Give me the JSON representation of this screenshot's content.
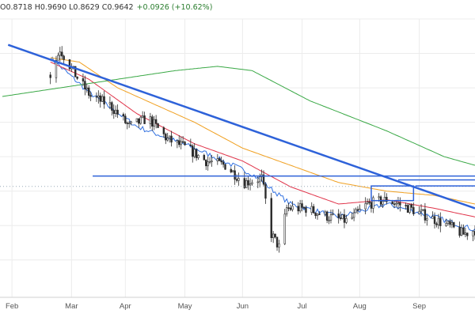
{
  "header": {
    "ohlc": "O0.8718 H0.9690 L0.8629 C0.9642",
    "change": "+0.0926 (+10.62%)"
  },
  "colors": {
    "background": "#ffffff",
    "grid": "#ececec",
    "candle": "#2b2b2b",
    "ma_fast": "#2f6fe0",
    "ma_medium": "#e0344a",
    "ma_slow": "#f0a020",
    "ma_long": "#39a845",
    "trendline": "#2e62d9",
    "price_line": "#9aaab8"
  },
  "chart_data": {
    "type": "candlestick",
    "x_axis": {
      "tick_labels": [
        "Feb",
        "Mar",
        "Apr",
        "May",
        "Jun",
        "Jul",
        "Aug",
        "Sep"
      ]
    },
    "y_axis": {
      "labels_visible": false
    },
    "grid": true,
    "candles": {
      "start_day": 25,
      "end_day": 246,
      "approx_close_path": [
        [
          25,
          1.03
        ],
        [
          30,
          1.09
        ],
        [
          38,
          1.03
        ],
        [
          46,
          0.98
        ],
        [
          56,
          0.96
        ],
        [
          66,
          0.91
        ],
        [
          76,
          0.93
        ],
        [
          86,
          0.88
        ],
        [
          96,
          0.86
        ],
        [
          106,
          0.83
        ],
        [
          116,
          0.82
        ],
        [
          126,
          0.78
        ],
        [
          135,
          0.79
        ],
        [
          140,
          0.66
        ],
        [
          144,
          0.63
        ],
        [
          148,
          0.72
        ],
        [
          158,
          0.72
        ],
        [
          170,
          0.7
        ],
        [
          180,
          0.69
        ],
        [
          190,
          0.73
        ],
        [
          200,
          0.74
        ],
        [
          206,
          0.73
        ],
        [
          212,
          0.72
        ],
        [
          222,
          0.7
        ],
        [
          232,
          0.68
        ],
        [
          240,
          0.66
        ],
        [
          246,
          0.67
        ]
      ]
    },
    "moving_averages": [
      {
        "role": "fast",
        "approx_path": [
          [
            25,
            1.07
          ],
          [
            45,
            0.99
          ],
          [
            70,
            0.91
          ],
          [
            100,
            0.86
          ],
          [
            130,
            0.8
          ],
          [
            150,
            0.73
          ],
          [
            175,
            0.7
          ],
          [
            200,
            0.73
          ],
          [
            225,
            0.7
          ],
          [
            246,
            0.67
          ]
        ]
      },
      {
        "role": "medium",
        "approx_path": [
          [
            25,
            1.06
          ],
          [
            45,
            1.02
          ],
          [
            70,
            0.94
          ],
          [
            100,
            0.87
          ],
          [
            125,
            0.83
          ],
          [
            150,
            0.77
          ],
          [
            175,
            0.73
          ],
          [
            200,
            0.74
          ],
          [
            225,
            0.72
          ],
          [
            246,
            0.7
          ]
        ]
      },
      {
        "role": "slow",
        "approx_path": [
          [
            25,
            1.07
          ],
          [
            40,
            1.06
          ],
          [
            60,
            1.0
          ],
          [
            80,
            0.96
          ],
          [
            100,
            0.92
          ],
          [
            125,
            0.86
          ],
          [
            150,
            0.82
          ],
          [
            175,
            0.78
          ],
          [
            200,
            0.76
          ],
          [
            225,
            0.75
          ],
          [
            246,
            0.73
          ]
        ]
      },
      {
        "role": "long",
        "approx_path": [
          [
            0,
            0.98
          ],
          [
            30,
            1.0
          ],
          [
            60,
            1.02
          ],
          [
            90,
            1.04
          ],
          [
            112,
            1.05
          ],
          [
            130,
            1.04
          ],
          [
            160,
            0.97
          ],
          [
            200,
            0.9
          ],
          [
            230,
            0.84
          ],
          [
            246,
            0.82
          ]
        ]
      }
    ],
    "drawings": {
      "trendline": {
        "from": [
          3,
          1.1
        ],
        "to": [
          246,
          0.72
        ]
      },
      "support_lines": [
        0.795,
        0.786,
        0.772
      ],
      "support_start_days": [
        47,
        206,
        215
      ],
      "rectangles": [
        {
          "days": [
            192,
            214
          ],
          "top": 0.772,
          "bottom": 0.738
        }
      ],
      "current_price_line": 0.771
    }
  }
}
